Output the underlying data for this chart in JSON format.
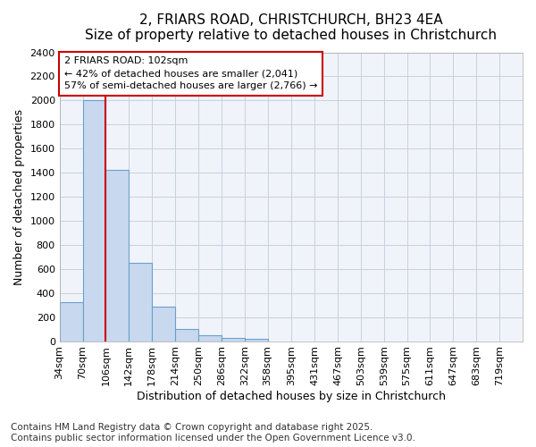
{
  "title_line1": "2, FRIARS ROAD, CHRISTCHURCH, BH23 4EA",
  "title_line2": "Size of property relative to detached houses in Christchurch",
  "xlabel": "Distribution of detached houses by size in Christchurch",
  "ylabel": "Number of detached properties",
  "annotation_line1": "2 FRIARS ROAD: 102sqm",
  "annotation_line2": "← 42% of detached houses are smaller (2,041)",
  "annotation_line3": "57% of semi-detached houses are larger (2,766) →",
  "footer_line1": "Contains HM Land Registry data © Crown copyright and database right 2025.",
  "footer_line2": "Contains public sector information licensed under the Open Government Licence v3.0.",
  "bin_edges": [
    34,
    70,
    106,
    142,
    178,
    214,
    250,
    286,
    322,
    358,
    395,
    431,
    467,
    503,
    539,
    575,
    611,
    647,
    683,
    719,
    755
  ],
  "bar_heights": [
    325,
    2000,
    1420,
    650,
    285,
    100,
    50,
    30,
    20,
    0,
    0,
    0,
    0,
    0,
    0,
    0,
    0,
    0,
    0,
    0
  ],
  "bar_color": "#c8d8ee",
  "bar_edge_color": "#6aa0cc",
  "vline_x": 106,
  "vline_color": "#cc0000",
  "ylim": [
    0,
    2400
  ],
  "yticks": [
    0,
    200,
    400,
    600,
    800,
    1000,
    1200,
    1400,
    1600,
    1800,
    2000,
    2200,
    2400
  ],
  "figure_bg_color": "#ffffff",
  "plot_bg_color": "#f0f4fa",
  "grid_color": "#c8d0dc",
  "annotation_box_color": "#cc0000",
  "title_fontsize": 11,
  "subtitle_fontsize": 10,
  "tick_fontsize": 8,
  "label_fontsize": 9,
  "annotation_fontsize": 8,
  "footer_fontsize": 7.5
}
